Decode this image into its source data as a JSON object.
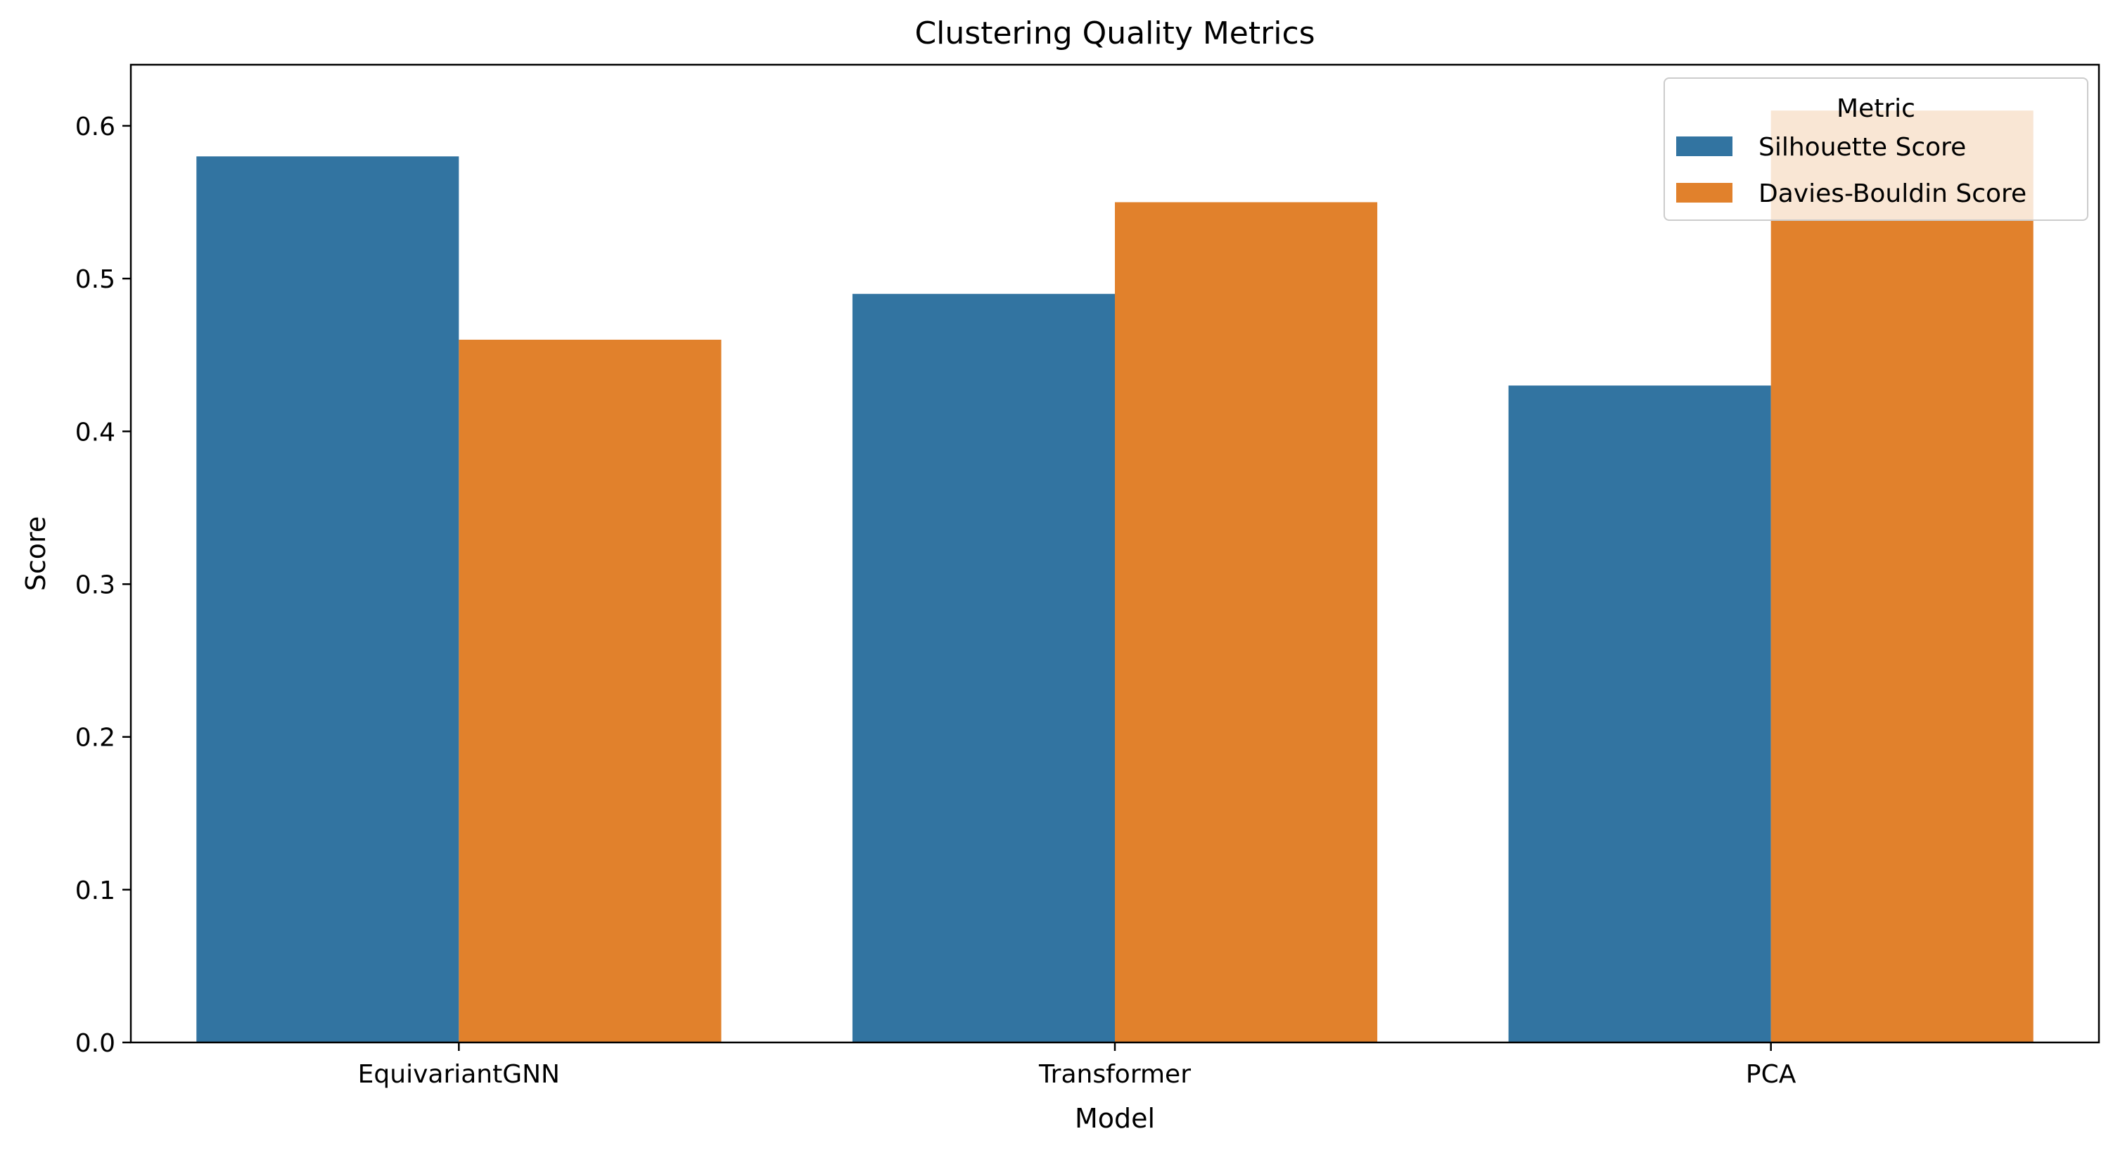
{
  "chart_data": {
    "type": "bar",
    "title": "Clustering Quality Metrics",
    "xlabel": "Model",
    "ylabel": "Score",
    "categories": [
      "EquivariantGNN",
      "Transformer",
      "PCA"
    ],
    "series": [
      {
        "name": "Silhouette Score",
        "color": "#3274a1",
        "values": [
          0.58,
          0.49,
          0.43
        ]
      },
      {
        "name": "Davies-Bouldin Score",
        "color": "#e1812c",
        "values": [
          0.46,
          0.55,
          0.61
        ]
      }
    ],
    "ylim": [
      0,
      0.64
    ],
    "yticks": [
      "0.0",
      "0.1",
      "0.2",
      "0.3",
      "0.4",
      "0.5",
      "0.6"
    ],
    "legend": {
      "title": "Metric",
      "placement": "top-right"
    },
    "grid": false
  }
}
